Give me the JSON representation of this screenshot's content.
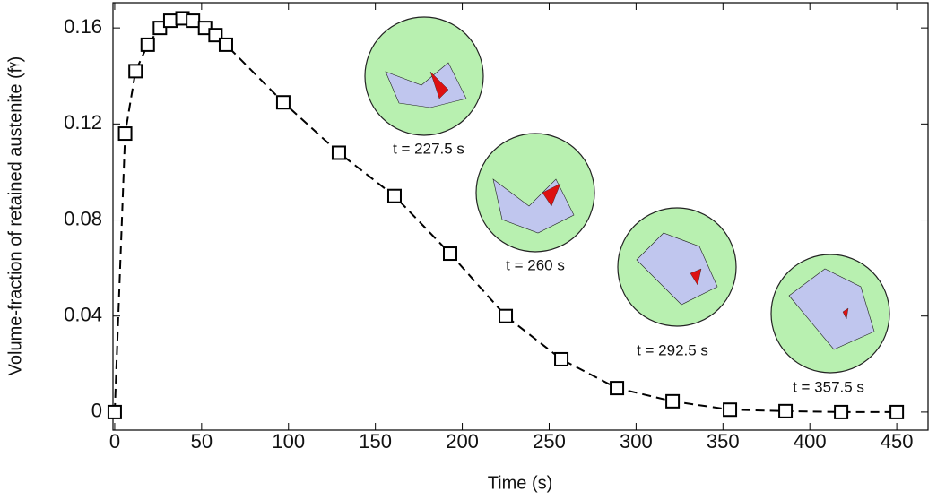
{
  "chart_data": {
    "type": "line",
    "x_label": "Time (s)",
    "y_label": "Volume-fraction of retained austenite (fᵞ)",
    "x": [
      0,
      6,
      12,
      19,
      26,
      32,
      39,
      45,
      52,
      58,
      64,
      97,
      129,
      161,
      193,
      225,
      257,
      289,
      321,
      354,
      386,
      418,
      450
    ],
    "series": [
      {
        "color": "#000000",
        "marker": "square",
        "dashed": true,
        "values": [
          0,
          0.116,
          0.142,
          0.153,
          0.16,
          0.163,
          0.164,
          0.163,
          0.16,
          0.157,
          0.153,
          0.129,
          0.108,
          0.09,
          0.066,
          0.04,
          0.022,
          0.01,
          0.0045,
          0.001,
          0.0004,
          0,
          0
        ]
      }
    ],
    "xlim": [
      -1,
      468
    ],
    "xticks": [
      0,
      50,
      100,
      150,
      200,
      250,
      300,
      350,
      400,
      450
    ],
    "ylim": [
      -0.0075,
      0.1705
    ],
    "yticks": [
      0,
      0.04,
      0.08,
      0.12,
      0.16
    ],
    "annotations": [
      "t = 227.5 s",
      "t = 260 s",
      "t = 292.5 s",
      "t = 357.5 s"
    ]
  }
}
